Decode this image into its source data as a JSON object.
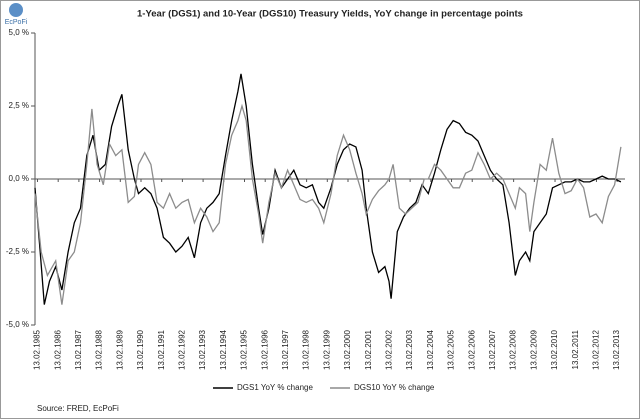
{
  "chart_data": {
    "type": "line",
    "title": "1-Year (DGS1) and 10-Year (DGS10) Treasury Yields, YoY change in percentage points",
    "logo": "EcPoFi",
    "source": "Source: FRED, EcPoFi",
    "xlim": [
      1985.0,
      2013.5
    ],
    "xticks": [
      {
        "value": 1985.12,
        "label": "13.02.1985"
      },
      {
        "value": 1986.12,
        "label": "13.02.1986"
      },
      {
        "value": 1987.12,
        "label": "13.02.1987"
      },
      {
        "value": 1988.12,
        "label": "13.02.1988"
      },
      {
        "value": 1989.12,
        "label": "13.02.1989"
      },
      {
        "value": 1990.12,
        "label": "13.02.1990"
      },
      {
        "value": 1991.12,
        "label": "13.02.1991"
      },
      {
        "value": 1992.12,
        "label": "13.02.1992"
      },
      {
        "value": 1993.12,
        "label": "13.02.1993"
      },
      {
        "value": 1994.12,
        "label": "13.02.1994"
      },
      {
        "value": 1995.12,
        "label": "13.02.1995"
      },
      {
        "value": 1996.12,
        "label": "13.02.1996"
      },
      {
        "value": 1997.12,
        "label": "13.02.1997"
      },
      {
        "value": 1998.12,
        "label": "13.02.1998"
      },
      {
        "value": 1999.12,
        "label": "13.02.1999"
      },
      {
        "value": 2000.12,
        "label": "13.02.2000"
      },
      {
        "value": 2001.12,
        "label": "13.02.2001"
      },
      {
        "value": 2002.12,
        "label": "13.02.2002"
      },
      {
        "value": 2003.12,
        "label": "13.02.2003"
      },
      {
        "value": 2004.12,
        "label": "13.02.2004"
      },
      {
        "value": 2005.12,
        "label": "13.02.2005"
      },
      {
        "value": 2006.12,
        "label": "13.02.2006"
      },
      {
        "value": 2007.12,
        "label": "13.02.2007"
      },
      {
        "value": 2008.12,
        "label": "13.02.2008"
      },
      {
        "value": 2009.12,
        "label": "13.02.2009"
      },
      {
        "value": 2010.12,
        "label": "13.02.2010"
      },
      {
        "value": 2011.12,
        "label": "13.02.2011"
      },
      {
        "value": 2012.12,
        "label": "13.02.2012"
      },
      {
        "value": 2013.12,
        "label": "13.02.2013"
      }
    ],
    "ylim": [
      -5,
      5
    ],
    "yticks": [
      {
        "value": -5,
        "label": "-5,0 %"
      },
      {
        "value": -2.5,
        "label": "-2,5 %"
      },
      {
        "value": 0,
        "label": "0,0 %"
      },
      {
        "value": 2.5,
        "label": "2,5 %"
      },
      {
        "value": 5,
        "label": "5,0 %"
      }
    ],
    "grid": false,
    "legend": "bottom",
    "series": [
      {
        "name": "DGS1 YoY % change",
        "color": "#000000",
        "x": [
          1985.0,
          1985.25,
          1985.45,
          1985.7,
          1986.0,
          1986.3,
          1986.6,
          1986.9,
          1987.2,
          1987.5,
          1987.8,
          1988.1,
          1988.4,
          1988.7,
          1989.0,
          1989.2,
          1989.5,
          1989.8,
          1990.0,
          1990.3,
          1990.6,
          1990.9,
          1991.2,
          1991.5,
          1991.8,
          1992.1,
          1992.4,
          1992.7,
          1993.0,
          1993.3,
          1993.6,
          1993.9,
          1994.2,
          1994.5,
          1994.8,
          1994.95,
          1995.2,
          1995.5,
          1995.8,
          1996.0,
          1996.3,
          1996.6,
          1996.9,
          1997.2,
          1997.5,
          1997.8,
          1998.1,
          1998.4,
          1998.7,
          1998.95,
          1999.3,
          1999.6,
          1999.9,
          2000.2,
          2000.5,
          2000.8,
          2001.0,
          2001.3,
          2001.6,
          2001.9,
          2002.1,
          2002.2,
          2002.5,
          2002.8,
          2003.1,
          2003.4,
          2003.7,
          2004.0,
          2004.3,
          2004.6,
          2004.9,
          2005.2,
          2005.5,
          2005.8,
          2006.1,
          2006.4,
          2006.7,
          2007.0,
          2007.3,
          2007.6,
          2007.9,
          2008.2,
          2008.4,
          2008.7,
          2008.9,
          2009.1,
          2009.4,
          2009.7,
          2010.0,
          2010.3,
          2010.6,
          2010.9,
          2011.2,
          2011.5,
          2011.8,
          2012.1,
          2012.4,
          2012.7,
          2013.0,
          2013.3
        ],
        "values": [
          -0.3,
          -2.5,
          -4.3,
          -3.5,
          -3.0,
          -3.8,
          -2.5,
          -1.5,
          -1.0,
          0.8,
          1.5,
          0.3,
          0.5,
          1.8,
          2.5,
          2.9,
          1.0,
          0.0,
          -0.5,
          -0.3,
          -0.5,
          -1.0,
          -2.0,
          -2.2,
          -2.5,
          -2.3,
          -2.0,
          -2.7,
          -1.5,
          -1.0,
          -0.8,
          -0.5,
          0.8,
          2.0,
          3.0,
          3.6,
          2.5,
          0.5,
          -1.0,
          -1.9,
          -1.0,
          0.3,
          -0.3,
          0.0,
          0.3,
          -0.2,
          -0.3,
          -0.2,
          -0.8,
          -1.0,
          -0.3,
          0.5,
          1.0,
          1.2,
          1.1,
          0.3,
          -1.0,
          -2.5,
          -3.2,
          -3.0,
          -3.5,
          -4.1,
          -1.8,
          -1.3,
          -1.0,
          -0.8,
          -0.2,
          -0.5,
          0.2,
          1.0,
          1.7,
          2.0,
          1.9,
          1.6,
          1.5,
          1.3,
          0.8,
          0.3,
          0.0,
          -0.2,
          -1.5,
          -3.3,
          -2.8,
          -2.5,
          -2.8,
          -1.8,
          -1.5,
          -1.2,
          -0.3,
          -0.2,
          -0.1,
          -0.1,
          0.0,
          -0.1,
          -0.1,
          0.0,
          0.1,
          0.0,
          0.0,
          -0.1
        ]
      },
      {
        "name": "DGS10 YoY % change",
        "color": "#8c8c8c",
        "x": [
          1985.0,
          1985.3,
          1985.6,
          1986.0,
          1986.3,
          1986.6,
          1986.9,
          1987.2,
          1987.5,
          1987.75,
          1988.0,
          1988.3,
          1988.6,
          1988.9,
          1989.2,
          1989.5,
          1989.8,
          1990.0,
          1990.3,
          1990.6,
          1990.9,
          1991.2,
          1991.5,
          1991.8,
          1992.1,
          1992.4,
          1992.7,
          1993.0,
          1993.3,
          1993.6,
          1993.9,
          1994.2,
          1994.5,
          1994.8,
          1995.0,
          1995.2,
          1995.5,
          1995.8,
          1996.0,
          1996.3,
          1996.6,
          1996.9,
          1997.2,
          1997.5,
          1997.8,
          1998.1,
          1998.4,
          1998.7,
          1998.95,
          1999.3,
          1999.6,
          1999.9,
          2000.2,
          2000.5,
          2000.8,
          2001.0,
          2001.3,
          2001.6,
          2001.9,
          2002.1,
          2002.3,
          2002.6,
          2002.9,
          2003.2,
          2003.5,
          2003.8,
          2004.0,
          2004.3,
          2004.6,
          2004.9,
          2005.2,
          2005.5,
          2005.8,
          2006.1,
          2006.4,
          2006.7,
          2007.0,
          2007.3,
          2007.6,
          2007.9,
          2008.2,
          2008.4,
          2008.7,
          2008.9,
          2009.1,
          2009.4,
          2009.7,
          2010.0,
          2010.3,
          2010.6,
          2010.9,
          2011.2,
          2011.5,
          2011.8,
          2012.1,
          2012.4,
          2012.7,
          2013.0,
          2013.3
        ],
        "values": [
          -0.5,
          -2.5,
          -3.3,
          -2.8,
          -4.3,
          -2.8,
          -2.5,
          -1.5,
          0.5,
          2.4,
          0.5,
          -0.2,
          1.2,
          0.8,
          1.0,
          -0.8,
          -0.6,
          0.5,
          0.9,
          0.5,
          -0.8,
          -1.0,
          -0.5,
          -1.0,
          -0.8,
          -0.7,
          -1.5,
          -1.0,
          -1.3,
          -1.8,
          -1.5,
          0.5,
          1.5,
          2.0,
          2.5,
          2.0,
          0.0,
          -1.2,
          -2.2,
          -0.8,
          0.2,
          -0.3,
          0.3,
          -0.2,
          -0.7,
          -0.8,
          -0.7,
          -1.0,
          -1.5,
          -0.5,
          0.8,
          1.5,
          1.0,
          0.2,
          -0.5,
          -1.2,
          -0.7,
          -0.4,
          -0.2,
          0.0,
          0.5,
          -1.0,
          -1.2,
          -1.0,
          -0.8,
          0.0,
          0.0,
          0.5,
          0.3,
          0.0,
          -0.3,
          -0.3,
          0.2,
          0.3,
          0.9,
          0.5,
          0.0,
          0.2,
          0.0,
          -0.5,
          -1.0,
          -0.3,
          -0.5,
          -1.8,
          -0.8,
          0.5,
          0.3,
          1.4,
          0.2,
          -0.5,
          -0.4,
          0.0,
          -0.3,
          -1.3,
          -1.2,
          -1.5,
          -0.6,
          -0.2,
          1.1
        ]
      }
    ]
  }
}
